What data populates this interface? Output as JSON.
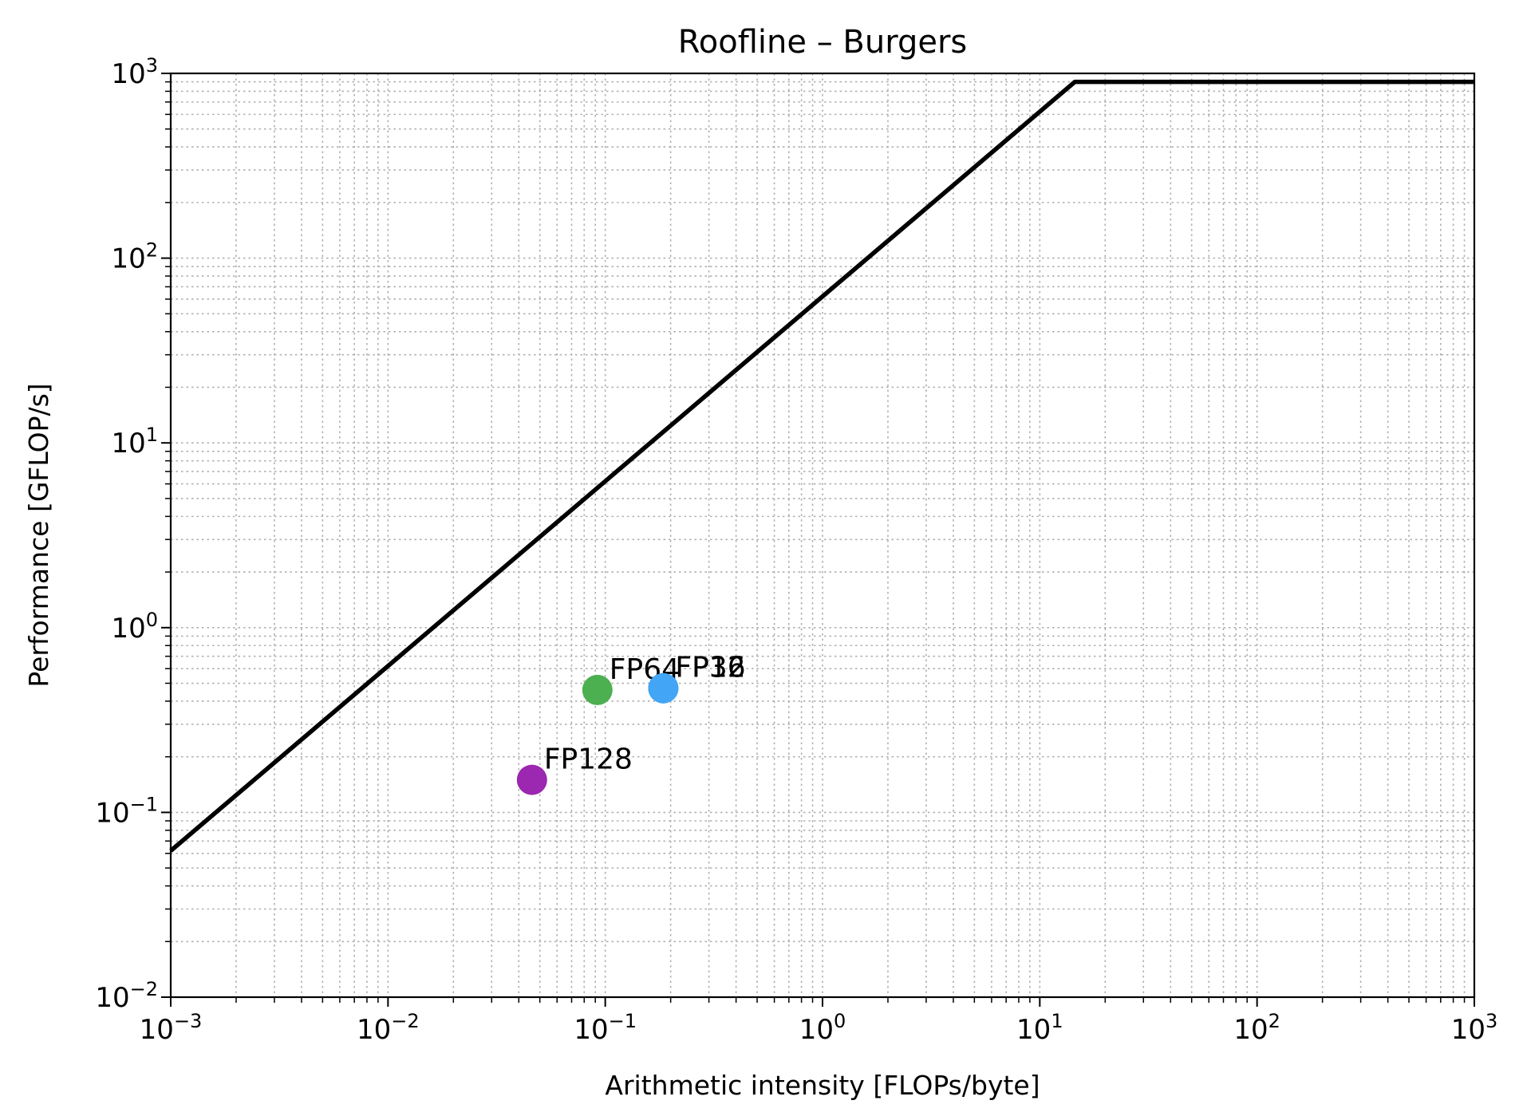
{
  "chart_data": {
    "type": "line",
    "title": "Roofline – Burgers",
    "xlabel": "Arithmetic intensity [FLOPs/byte]",
    "ylabel": "Performance [GFLOP/s]",
    "xscale": "log",
    "yscale": "log",
    "xlim": [
      0.001,
      1000
    ],
    "ylim": [
      0.01,
      1000
    ],
    "grid": "on (major and minor, dotted)",
    "x_ticks": [
      {
        "base": "10",
        "exp": "−3"
      },
      {
        "base": "10",
        "exp": "−2"
      },
      {
        "base": "10",
        "exp": "−1"
      },
      {
        "base": "10",
        "exp": "0"
      },
      {
        "base": "10",
        "exp": "1"
      },
      {
        "base": "10",
        "exp": "2"
      },
      {
        "base": "10",
        "exp": "3"
      }
    ],
    "y_ticks": [
      {
        "base": "10",
        "exp": "−2"
      },
      {
        "base": "10",
        "exp": "−1"
      },
      {
        "base": "10",
        "exp": "0"
      },
      {
        "base": "10",
        "exp": "1"
      },
      {
        "base": "10",
        "exp": "2"
      },
      {
        "base": "10",
        "exp": "3"
      }
    ],
    "roofline": {
      "color": "#000000",
      "x": [
        0.001,
        14.5,
        1000
      ],
      "y": [
        0.062,
        900,
        900
      ]
    },
    "points": [
      {
        "label": "FP128",
        "x": 0.046,
        "y": 0.15,
        "color": "#9c27b0"
      },
      {
        "label": "FP64",
        "x": 0.092,
        "y": 0.46,
        "color": "#4caf50"
      },
      {
        "label": "FP32",
        "x": 0.185,
        "y": 0.47,
        "color": "#2196f3"
      },
      {
        "label": "FP16",
        "x": 0.185,
        "y": 0.47,
        "color": "#42a5f5"
      }
    ]
  }
}
